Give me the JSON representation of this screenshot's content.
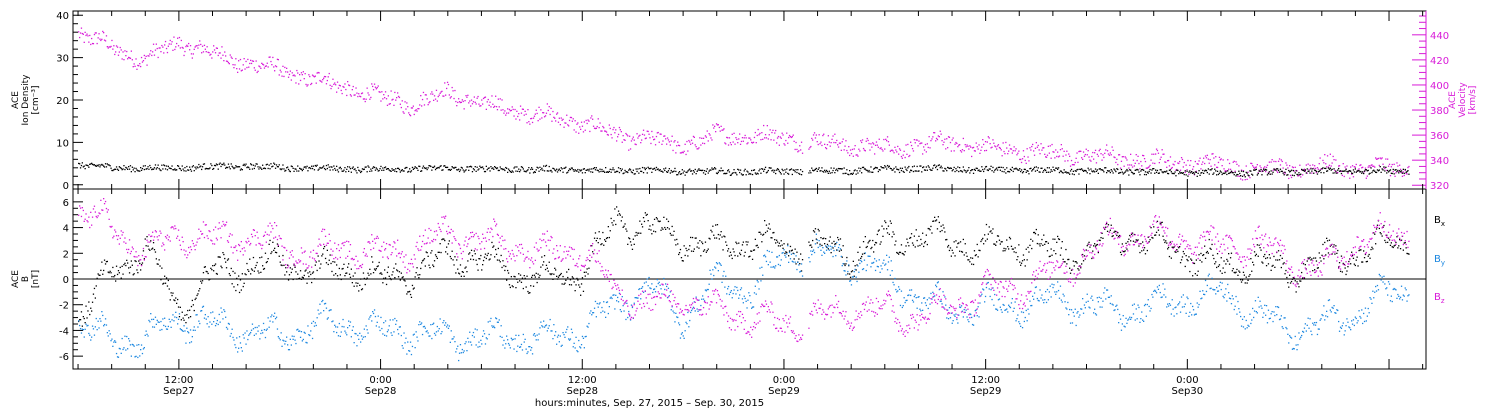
{
  "colors": {
    "black": "#000000",
    "magenta": "#d81ad8",
    "blue": "#1b87e0"
  },
  "footer_label": "hours:minutes, Sep. 27, 2015 – Sep. 30, 2015",
  "time_ticks": [
    {
      "time": "12:00",
      "date": "Sep27"
    },
    {
      "time": "0:00",
      "date": "Sep28"
    },
    {
      "time": "12:00",
      "date": "Sep28"
    },
    {
      "time": "0:00",
      "date": "Sep29"
    },
    {
      "time": "12:00",
      "date": "Sep29"
    },
    {
      "time": "0:00",
      "date": "Sep30"
    }
  ],
  "top_panel": {
    "left_label_lines": [
      "ACE",
      "Ion Density",
      "[cm⁻³]"
    ],
    "right_label_lines": [
      "ACE",
      "Velocity",
      "[km/s]"
    ],
    "left_ticks": [
      "0",
      "10",
      "20",
      "30",
      "40"
    ],
    "right_ticks": [
      "320",
      "340",
      "360",
      "380",
      "400",
      "420",
      "440"
    ]
  },
  "bottom_panel": {
    "left_label_lines": [
      "ACE",
      "B",
      "[nT]"
    ],
    "left_ticks": [
      "-6",
      "-4",
      "-2",
      "0",
      "2",
      "4",
      "6"
    ],
    "legend": [
      {
        "base": "B",
        "sub": "x",
        "color": "black"
      },
      {
        "base": "B",
        "sub": "y",
        "color": "blue"
      },
      {
        "base": "B",
        "sub": "z",
        "color": "magenta"
      }
    ]
  },
  "chart_data": [
    {
      "type": "scatter",
      "panel": "top",
      "x_axis": "time (hours since 2015-09-27 00:00 UT)",
      "xlim_hours": [
        5.7,
        86.2
      ],
      "ylim_left": [
        -1,
        41
      ],
      "ylim_right": [
        317,
        459
      ],
      "series": [
        {
          "name": "Ion Density",
          "axis": "left",
          "color": "black",
          "x_hours": [
            6,
            8,
            10,
            12,
            16,
            20,
            24,
            28,
            32,
            36,
            40,
            44,
            48,
            52,
            56,
            60,
            64,
            68,
            72,
            76,
            80,
            84
          ],
          "values": [
            4.8,
            4.2,
            4.0,
            4.2,
            4.5,
            4.0,
            3.8,
            4.0,
            3.8,
            3.6,
            3.5,
            3.2,
            3.3,
            3.5,
            4.0,
            3.6,
            3.5,
            3.3,
            3.0,
            3.0,
            3.3,
            3.5
          ]
        },
        {
          "name": "Velocity",
          "axis": "right",
          "color": "magenta",
          "x_hours": [
            6,
            8,
            10,
            12,
            14,
            16,
            18,
            20,
            22,
            24,
            26,
            28,
            30,
            32,
            34,
            36,
            38,
            40,
            42,
            44,
            46,
            48,
            50,
            52,
            54,
            56,
            58,
            60,
            62,
            64,
            66,
            68,
            70,
            72,
            74,
            76,
            78,
            80,
            82,
            84
          ],
          "values": [
            442,
            430,
            420,
            435,
            425,
            418,
            412,
            405,
            398,
            390,
            385,
            395,
            385,
            380,
            375,
            370,
            360,
            357,
            352,
            360,
            360,
            358,
            355,
            352,
            350,
            352,
            355,
            350,
            348,
            346,
            344,
            342,
            340,
            338,
            337,
            334,
            333,
            336,
            334,
            334
          ]
        }
      ]
    },
    {
      "type": "scatter",
      "panel": "bottom",
      "x_axis": "time (hours since 2015-09-27 00:00 UT)",
      "xlim_hours": [
        5.7,
        86.2
      ],
      "ylim": [
        -7,
        7
      ],
      "series": [
        {
          "name": "Bx",
          "color": "black",
          "x_hours": [
            6,
            8,
            10,
            12,
            14,
            16,
            18,
            20,
            22,
            24,
            26,
            28,
            30,
            32,
            34,
            36,
            38,
            40,
            42,
            44,
            46,
            48,
            50,
            52,
            54,
            56,
            58,
            60,
            62,
            64,
            66,
            68,
            70,
            72,
            74,
            76,
            78,
            80,
            82,
            84
          ],
          "values": [
            -3,
            0.5,
            2.5,
            -2.5,
            0.5,
            1.0,
            1.5,
            0.5,
            1.0,
            0.0,
            0.5,
            2.0,
            1.5,
            0.5,
            0.0,
            0.5,
            4.5,
            4.0,
            3.0,
            2.5,
            3.0,
            2.5,
            2.5,
            2.0,
            3.0,
            3.5,
            3.0,
            2.5,
            3.0,
            2.0,
            2.0,
            3.5,
            3.0,
            2.0,
            1.0,
            1.5,
            0.5,
            1.5,
            2.0,
            3.0
          ]
        },
        {
          "name": "By",
          "color": "blue",
          "x_hours": [
            6,
            8,
            10,
            12,
            14,
            16,
            18,
            20,
            22,
            24,
            26,
            28,
            30,
            32,
            34,
            36,
            38,
            40,
            42,
            44,
            46,
            48,
            50,
            52,
            54,
            56,
            58,
            60,
            62,
            64,
            66,
            68,
            70,
            72,
            74,
            76,
            78,
            80,
            82,
            84
          ],
          "values": [
            -3,
            -5,
            -4.5,
            -3.0,
            -3.5,
            -4.0,
            -4.5,
            -3.5,
            -3.5,
            -4.0,
            -4.0,
            -4.5,
            -4.5,
            -4.5,
            -4.5,
            -4.0,
            -2.0,
            -0.5,
            -3.0,
            0.0,
            -1.0,
            2.0,
            2.0,
            1.5,
            0.5,
            -1.5,
            -2.5,
            -2.0,
            -2.0,
            -1.5,
            -2.0,
            -2.5,
            -2.0,
            -1.5,
            -1.0,
            -2.5,
            -4.0,
            -3.5,
            -2.5,
            -1.0
          ]
        },
        {
          "name": "Bz",
          "color": "magenta",
          "x_hours": [
            6,
            8,
            10,
            12,
            14,
            16,
            18,
            20,
            22,
            24,
            26,
            28,
            30,
            32,
            34,
            36,
            38,
            40,
            42,
            44,
            46,
            48,
            50,
            52,
            54,
            56,
            58,
            60,
            62,
            64,
            66,
            68,
            70,
            72,
            74,
            76,
            78,
            80,
            82,
            84
          ],
          "values": [
            5.5,
            4.0,
            2.0,
            3.5,
            3.0,
            3.5,
            2.5,
            2.0,
            2.5,
            2.0,
            2.5,
            3.5,
            3.0,
            2.5,
            2.0,
            2.5,
            -1.0,
            -2.0,
            -1.5,
            -2.5,
            -3.0,
            -3.5,
            -3.0,
            -2.0,
            -2.5,
            -3.0,
            -2.0,
            -1.0,
            -0.5,
            0.5,
            2.0,
            3.5,
            3.5,
            3.0,
            2.5,
            3.0,
            1.5,
            0.5,
            3.0,
            3.5
          ]
        }
      ]
    }
  ]
}
